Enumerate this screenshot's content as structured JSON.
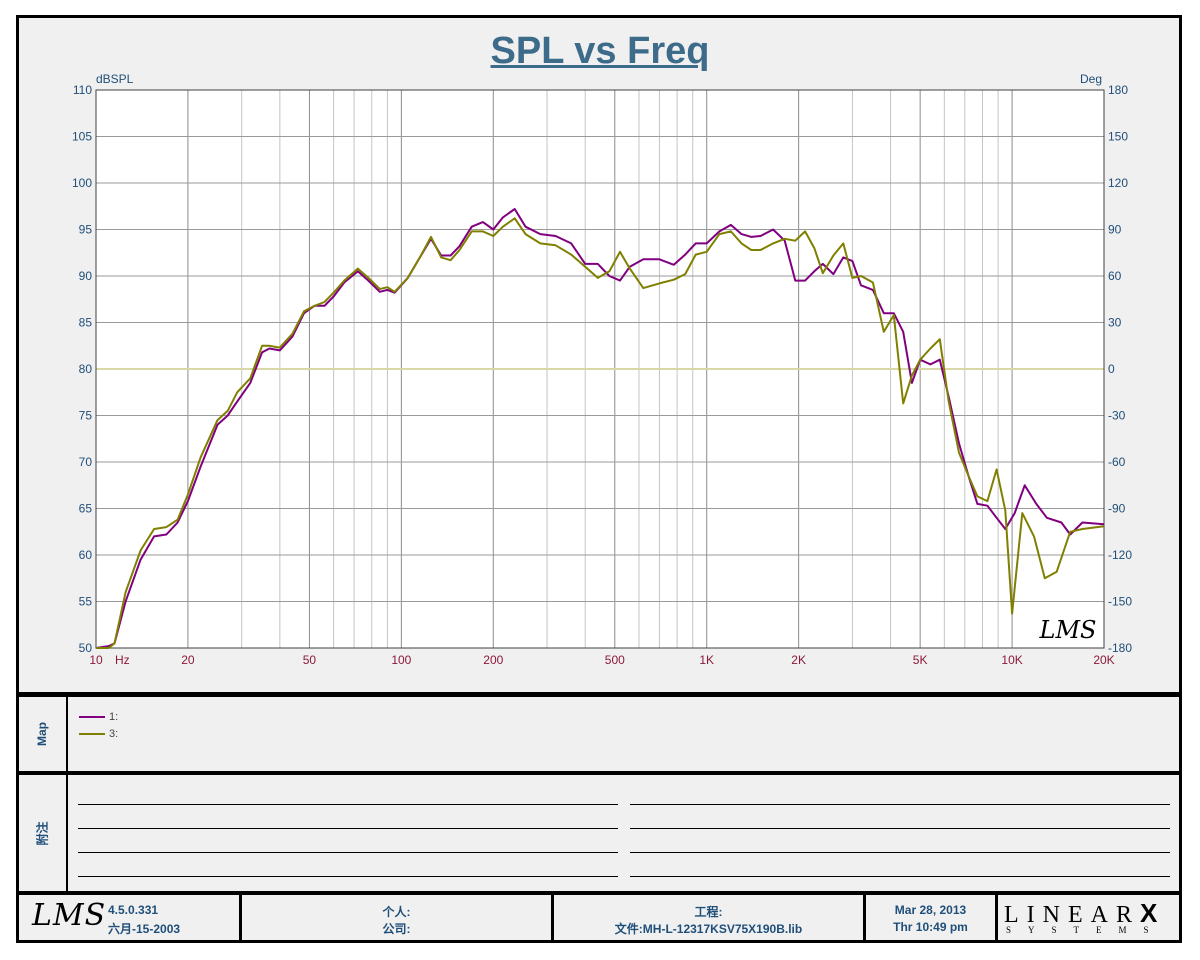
{
  "chart_data": {
    "type": "line",
    "title": "SPL vs Freq",
    "y_left_label": "dBSPL",
    "y_right_label": "Deg",
    "x_scale": "log",
    "xlim": [
      10,
      20000
    ],
    "ylim": [
      50,
      110
    ],
    "y_right_lim": [
      -180,
      180
    ],
    "x_tick_labels": [
      {
        "f": 10,
        "label": "10"
      },
      {
        "f": 20,
        "label": "20"
      },
      {
        "f": 50,
        "label": "50"
      },
      {
        "f": 100,
        "label": "100"
      },
      {
        "f": 200,
        "label": "200"
      },
      {
        "f": 500,
        "label": "500"
      },
      {
        "f": 1000,
        "label": "1K"
      },
      {
        "f": 2000,
        "label": "2K"
      },
      {
        "f": 5000,
        "label": "5K"
      },
      {
        "f": 10000,
        "label": "10K"
      },
      {
        "f": 20000,
        "label": "20K"
      }
    ],
    "x_unit_label": "Hz",
    "y_left_ticks": [
      110,
      105,
      100,
      95,
      90,
      85,
      80,
      75,
      70,
      65,
      60,
      55,
      50
    ],
    "y_right_ticks": [
      180,
      150,
      120,
      90,
      60,
      30,
      0,
      -30,
      -60,
      -90,
      -120,
      -150,
      -180
    ],
    "grid": true,
    "zero_phase_line_color": "#d8d8a8",
    "series": [
      {
        "name": "1:",
        "color": "#800080",
        "points": [
          [
            10,
            50
          ],
          [
            11,
            50.2
          ],
          [
            11.5,
            50.5
          ],
          [
            12.5,
            55
          ],
          [
            14,
            59.5
          ],
          [
            15.5,
            62
          ],
          [
            17,
            62.2
          ],
          [
            18.5,
            63.5
          ],
          [
            20,
            65.8
          ],
          [
            22,
            69.5
          ],
          [
            25,
            74
          ],
          [
            27,
            75
          ],
          [
            29,
            76.5
          ],
          [
            32,
            78.5
          ],
          [
            35,
            81.8
          ],
          [
            37,
            82.2
          ],
          [
            40,
            82
          ],
          [
            44,
            83.5
          ],
          [
            48,
            86
          ],
          [
            52,
            86.8
          ],
          [
            56,
            86.8
          ],
          [
            60,
            87.8
          ],
          [
            65,
            89.3
          ],
          [
            72,
            90.5
          ],
          [
            78,
            89.5
          ],
          [
            85,
            88.3
          ],
          [
            90,
            88.5
          ],
          [
            95,
            88.2
          ],
          [
            105,
            89.8
          ],
          [
            115,
            92
          ],
          [
            125,
            94
          ],
          [
            135,
            92.2
          ],
          [
            145,
            92.2
          ],
          [
            155,
            93.2
          ],
          [
            170,
            95.3
          ],
          [
            185,
            95.8
          ],
          [
            200,
            95
          ],
          [
            215,
            96.3
          ],
          [
            235,
            97.2
          ],
          [
            255,
            95.3
          ],
          [
            285,
            94.5
          ],
          [
            320,
            94.3
          ],
          [
            360,
            93.5
          ],
          [
            400,
            91.3
          ],
          [
            440,
            91.3
          ],
          [
            480,
            90
          ],
          [
            520,
            89.5
          ],
          [
            560,
            91
          ],
          [
            620,
            91.8
          ],
          [
            700,
            91.8
          ],
          [
            780,
            91.2
          ],
          [
            850,
            92.3
          ],
          [
            920,
            93.5
          ],
          [
            1000,
            93.5
          ],
          [
            1100,
            94.8
          ],
          [
            1200,
            95.5
          ],
          [
            1300,
            94.5
          ],
          [
            1400,
            94.2
          ],
          [
            1500,
            94.3
          ],
          [
            1650,
            95
          ],
          [
            1800,
            93.8
          ],
          [
            1950,
            89.5
          ],
          [
            2100,
            89.5
          ],
          [
            2250,
            90.5
          ],
          [
            2400,
            91.3
          ],
          [
            2600,
            90.2
          ],
          [
            2800,
            92
          ],
          [
            3000,
            91.6
          ],
          [
            3200,
            89
          ],
          [
            3500,
            88.5
          ],
          [
            3800,
            86
          ],
          [
            4100,
            86
          ],
          [
            4400,
            84
          ],
          [
            4700,
            78.5
          ],
          [
            5000,
            81
          ],
          [
            5400,
            80.5
          ],
          [
            5800,
            81
          ],
          [
            6200,
            77
          ],
          [
            6700,
            72
          ],
          [
            7200,
            68.5
          ],
          [
            7700,
            65.5
          ],
          [
            8300,
            65.3
          ],
          [
            8900,
            64
          ],
          [
            9500,
            62.8
          ],
          [
            10200,
            64.5
          ],
          [
            11000,
            67.5
          ],
          [
            12000,
            65.5
          ],
          [
            13000,
            64
          ],
          [
            14500,
            63.5
          ],
          [
            15500,
            62.2
          ],
          [
            17000,
            63.5
          ],
          [
            20000,
            63.3
          ]
        ]
      },
      {
        "name": "3:",
        "color": "#808000",
        "points": [
          [
            10,
            50
          ],
          [
            11,
            50
          ],
          [
            11.5,
            50.5
          ],
          [
            12.5,
            56
          ],
          [
            14,
            60.5
          ],
          [
            15.5,
            62.8
          ],
          [
            17,
            63
          ],
          [
            18.5,
            63.8
          ],
          [
            20,
            66.5
          ],
          [
            22,
            70.5
          ],
          [
            25,
            74.5
          ],
          [
            27,
            75.5
          ],
          [
            29,
            77.5
          ],
          [
            32,
            79
          ],
          [
            35,
            82.5
          ],
          [
            37,
            82.5
          ],
          [
            40,
            82.3
          ],
          [
            44,
            83.8
          ],
          [
            48,
            86.2
          ],
          [
            52,
            86.8
          ],
          [
            56,
            87.2
          ],
          [
            60,
            88.2
          ],
          [
            65,
            89.5
          ],
          [
            72,
            90.8
          ],
          [
            78,
            89.8
          ],
          [
            85,
            88.6
          ],
          [
            90,
            88.8
          ],
          [
            95,
            88.3
          ],
          [
            105,
            89.8
          ],
          [
            115,
            92
          ],
          [
            125,
            94.2
          ],
          [
            135,
            92
          ],
          [
            145,
            91.7
          ],
          [
            155,
            92.8
          ],
          [
            170,
            94.8
          ],
          [
            185,
            94.8
          ],
          [
            200,
            94.3
          ],
          [
            215,
            95.3
          ],
          [
            235,
            96.2
          ],
          [
            255,
            94.5
          ],
          [
            285,
            93.5
          ],
          [
            320,
            93.3
          ],
          [
            360,
            92.3
          ],
          [
            400,
            91
          ],
          [
            440,
            89.8
          ],
          [
            480,
            90.5
          ],
          [
            520,
            92.6
          ],
          [
            560,
            90.8
          ],
          [
            620,
            88.7
          ],
          [
            700,
            89.2
          ],
          [
            780,
            89.6
          ],
          [
            850,
            90.2
          ],
          [
            920,
            92.3
          ],
          [
            1000,
            92.6
          ],
          [
            1100,
            94.5
          ],
          [
            1200,
            94.8
          ],
          [
            1300,
            93.5
          ],
          [
            1400,
            92.8
          ],
          [
            1500,
            92.8
          ],
          [
            1650,
            93.5
          ],
          [
            1800,
            94
          ],
          [
            1950,
            93.8
          ],
          [
            2100,
            94.8
          ],
          [
            2250,
            93
          ],
          [
            2400,
            90.3
          ],
          [
            2600,
            92.2
          ],
          [
            2800,
            93.5
          ],
          [
            3000,
            89.8
          ],
          [
            3200,
            90
          ],
          [
            3500,
            89.3
          ],
          [
            3800,
            84
          ],
          [
            4100,
            85.8
          ],
          [
            4400,
            76.3
          ],
          [
            4700,
            79.3
          ],
          [
            5000,
            81
          ],
          [
            5400,
            82.2
          ],
          [
            5800,
            83.2
          ],
          [
            6200,
            76.5
          ],
          [
            6700,
            71
          ],
          [
            7200,
            68.5
          ],
          [
            7700,
            66.3
          ],
          [
            8300,
            65.8
          ],
          [
            8900,
            69.2
          ],
          [
            9500,
            64.8
          ],
          [
            10000,
            53.7
          ],
          [
            10800,
            64.5
          ],
          [
            11800,
            62
          ],
          [
            12800,
            57.5
          ],
          [
            14000,
            58.2
          ],
          [
            15500,
            62.5
          ],
          [
            17000,
            62.8
          ],
          [
            20000,
            63.1
          ]
        ]
      }
    ]
  },
  "map_panel": {
    "label": "Map",
    "legend": [
      {
        "name": "1:",
        "color": "#800080"
      },
      {
        "name": "3:",
        "color": "#808000"
      }
    ]
  },
  "notes_panel": {
    "label": "附注"
  },
  "footer": {
    "lms_logo": "LMS",
    "version": "4.5.0.331",
    "build_date": "六月-15-2003",
    "person_label": "个人:",
    "company_label": "公司:",
    "project_label": "工程:",
    "file_label": "文件:MH-L-12317KSV75X190B.lib",
    "date": "Mar 28, 2013",
    "time": "Thr 10:49 pm",
    "brand_main": "LINEAR",
    "brand_x": "X",
    "brand_sub": "SYSTEMS"
  },
  "chart_watermark": "LMS"
}
